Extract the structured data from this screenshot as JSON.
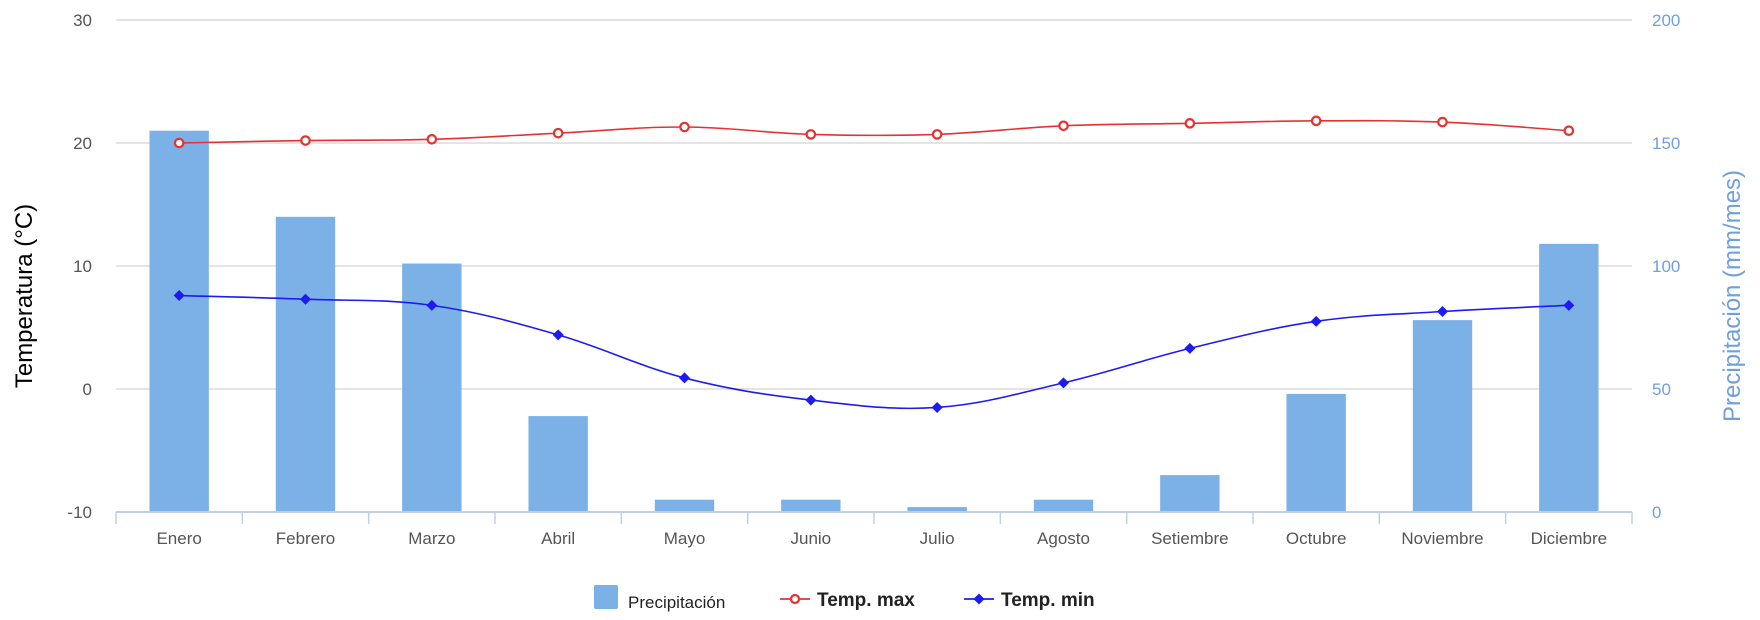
{
  "chart_data": {
    "type": "bar+line",
    "categories": [
      "Enero",
      "Febrero",
      "Marzo",
      "Abril",
      "Mayo",
      "Junio",
      "Julio",
      "Agosto",
      "Setiembre",
      "Octubre",
      "Noviembre",
      "Diciembre"
    ],
    "y_left": {
      "label": "Temperatura (°C)",
      "range": [
        -10,
        30
      ],
      "ticks": [
        "-10",
        "0",
        "10",
        "20",
        "30"
      ]
    },
    "y_right": {
      "label": "Precipitación (mm/mes)",
      "range": [
        0,
        200
      ],
      "ticks": [
        "0",
        "50",
        "100",
        "150",
        "200"
      ]
    },
    "series": [
      {
        "name": "Precipitación",
        "type": "bar",
        "axis": "right",
        "color": "#7cb1e8",
        "values": [
          155,
          120,
          101,
          39,
          5,
          5,
          2,
          5,
          15,
          48,
          78,
          109
        ]
      },
      {
        "name": "Temp. max",
        "type": "line",
        "axis": "left",
        "color": "#e63131",
        "marker": "circle",
        "values": [
          20.0,
          20.2,
          20.3,
          20.8,
          21.3,
          20.7,
          20.7,
          21.4,
          21.6,
          21.8,
          21.7,
          21.0
        ]
      },
      {
        "name": "Temp. min",
        "type": "line",
        "axis": "left",
        "color": "#1c1cf0",
        "marker": "diamond",
        "values": [
          7.6,
          7.3,
          6.8,
          4.4,
          0.9,
          -0.9,
          -1.5,
          0.5,
          3.3,
          5.5,
          6.3,
          6.8
        ]
      }
    ],
    "grid": true,
    "legend": "bottom-center"
  }
}
